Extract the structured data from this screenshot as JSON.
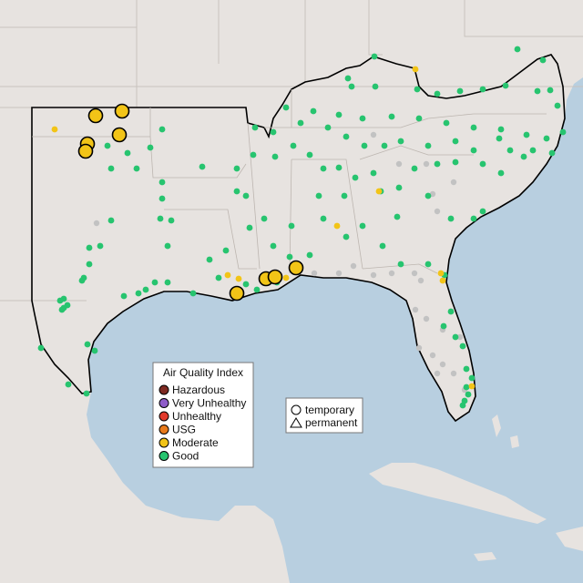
{
  "map": {
    "colors": {
      "water": "#b8cfe0",
      "land": "#e7e3e0",
      "border": "#c9c3be",
      "outline": "#000000",
      "no_data": "#c2c2c2"
    }
  },
  "legend_aqi": {
    "title": "Air Quality Index",
    "items": [
      {
        "label": "Hazardous",
        "color": "#7e2a22"
      },
      {
        "label": "Very Unhealthy",
        "color": "#8e5cc9"
      },
      {
        "label": "Unhealthy",
        "color": "#e1392b"
      },
      {
        "label": "USG",
        "color": "#e87a1b"
      },
      {
        "label": "Moderate",
        "color": "#f2c417"
      },
      {
        "label": "Good",
        "color": "#27c46f"
      }
    ]
  },
  "legend_type": {
    "items": [
      {
        "label": "temporary",
        "shape": "circle-icon"
      },
      {
        "label": "permanent",
        "shape": "triangle-icon"
      }
    ]
  }
}
